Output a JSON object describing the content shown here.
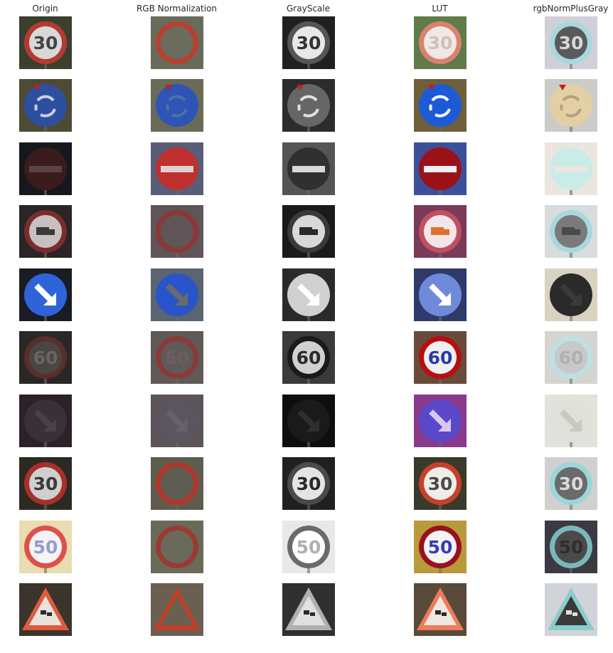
{
  "figure": {
    "columns": [
      {
        "key": "origin",
        "title": "Origin"
      },
      {
        "key": "rgbnorm",
        "title": "RGB Normalization"
      },
      {
        "key": "gray",
        "title": "GrayScale"
      },
      {
        "key": "lut",
        "title": "LUT"
      },
      {
        "key": "rgbgray",
        "title": "rgbNormPlusGray"
      }
    ],
    "rows": [
      {
        "sign": "speed",
        "text": "30",
        "kind": "regulatory",
        "shape": "circle-ring",
        "origin": {
          "bg": "#3a3f2e",
          "face": "#d8d8d8",
          "ring": "#b43a32",
          "glyph": "#444444"
        },
        "rgbnorm": {
          "bg": "#6a6a5a",
          "face": "#6b6b5e",
          "ring": "#b8402f",
          "glyph": "#6b6b5e"
        },
        "gray": {
          "bg": "#202020",
          "face": "#e8e8e8",
          "ring": "#555555",
          "glyph": "#333333"
        },
        "lut": {
          "bg": "#5f7b4a",
          "face": "#f0e8e4",
          "ring": "#d9826f",
          "glyph": "#d0c0bc"
        },
        "rgbgray": {
          "bg": "#cfd0d8",
          "face": "#5a5a5a",
          "ring": "#a8d8dc",
          "glyph": "#d8d8d8"
        }
      },
      {
        "sign": "roundabout",
        "text": "",
        "kind": "mandatory",
        "shape": "circle-fill",
        "origin": {
          "bg": "#4d4a36",
          "face": "#2e4fa0",
          "ring": "#2e4fa0",
          "glyph": "#c8d0e0"
        },
        "rgbnorm": {
          "bg": "#6a6a58",
          "face": "#2e55b5",
          "ring": "#2e55b5",
          "glyph": "#4f6fa8"
        },
        "gray": {
          "bg": "#2c2c2c",
          "face": "#202020",
          "ring": "#666666",
          "glyph": "#e0e0e0"
        },
        "lut": {
          "bg": "#6f5f3a",
          "face": "#1d5ad6",
          "ring": "#1d5ad6",
          "glyph": "#ffffff"
        },
        "rgbgray": {
          "bg": "#cbcbc8",
          "face": "#e2cfa5",
          "ring": "#e2cfa5",
          "glyph": "#b5a27c"
        }
      },
      {
        "sign": "no-entry",
        "text": "",
        "kind": "bar",
        "shape": "circle-bar",
        "origin": {
          "bg": "#16181e",
          "face": "#3a1c1c",
          "ring": "#3a1c1c",
          "glyph": "#5a4444"
        },
        "rgbnorm": {
          "bg": "#5a5d78",
          "face": "#c03030",
          "ring": "#c03030",
          "glyph": "#e0d0d0"
        },
        "gray": {
          "bg": "#555555",
          "face": "#202020",
          "ring": "#303030",
          "glyph": "#d8d8d8"
        },
        "lut": {
          "bg": "#3c4f9a",
          "face": "#9a1218",
          "ring": "#9a1218",
          "glyph": "#f0f0f0"
        },
        "rgbgray": {
          "bg": "#eae6df",
          "face": "#c9ece8",
          "ring": "#c9ece8",
          "glyph": "#eae6df"
        }
      },
      {
        "sign": "no-trucks",
        "text": "",
        "kind": "truck",
        "shape": "circle-ring",
        "origin": {
          "bg": "#2a2526",
          "face": "#c8c0c0",
          "ring": "#7a2d2d",
          "glyph": "#3a3a3a"
        },
        "rgbnorm": {
          "bg": "#5f5558",
          "face": "#605558",
          "ring": "#8a3838",
          "glyph": "#605558"
        },
        "gray": {
          "bg": "#1a1a1a",
          "face": "#d8d8d8",
          "ring": "#3a3a3a",
          "glyph": "#2a2a2a"
        },
        "lut": {
          "bg": "#7a3a5a",
          "face": "#f2e6ea",
          "ring": "#c05060",
          "glyph": "#e07030"
        },
        "rgbgray": {
          "bg": "#d8dcdc",
          "face": "#7a7a7a",
          "ring": "#a8d8dc",
          "glyph": "#4a4a4a"
        }
      },
      {
        "sign": "keep-right",
        "text": "",
        "kind": "arrow",
        "shape": "circle-fill",
        "origin": {
          "bg": "#1a1c24",
          "face": "#2f64d8",
          "ring": "#2f64d8",
          "glyph": "#ffffff"
        },
        "rgbnorm": {
          "bg": "#5a6472",
          "face": "#2a55c8",
          "ring": "#2a55c8",
          "glyph": "#6a6a6a"
        },
        "gray": {
          "bg": "#2a2a2a",
          "face": "#7a7a7a",
          "ring": "#d0d0d0",
          "glyph": "#ffffff"
        },
        "lut": {
          "bg": "#2f3a6a",
          "face": "#6f8ad8",
          "ring": "#6f8ad8",
          "glyph": "#ffffff"
        },
        "rgbgray": {
          "bg": "#d7d2c2",
          "face": "#b89c58",
          "ring": "#2a2a2a",
          "glyph": "#3a3a3a"
        }
      },
      {
        "sign": "speed",
        "text": "60",
        "kind": "regulatory",
        "shape": "circle-ring",
        "origin": {
          "bg": "#2a2826",
          "face": "#4a4644",
          "ring": "#5a2e2a",
          "glyph": "#6a6462"
        },
        "rgbnorm": {
          "bg": "#5f5a58",
          "face": "#5f5a58",
          "ring": "#8a3a38",
          "glyph": "#6a5e60"
        },
        "gray": {
          "bg": "#3a3a3a",
          "face": "#d0d0d0",
          "ring": "#1a1a1a",
          "glyph": "#2a2a2a"
        },
        "lut": {
          "bg": "#6a4a3a",
          "face": "#f0f0f0",
          "ring": "#b80e12",
          "glyph": "#2a3aa8"
        },
        "rgbgray": {
          "bg": "#d4d4d0",
          "face": "#c8c8c8",
          "ring": "#bfe0e2",
          "glyph": "#b0b0b0"
        }
      },
      {
        "sign": "keep-right-dark",
        "text": "",
        "kind": "arrow",
        "shape": "circle-fill",
        "origin": {
          "bg": "#2a2228",
          "face": "#3a3038",
          "ring": "#3a3038",
          "glyph": "#4a4046"
        },
        "rgbnorm": {
          "bg": "#5c5458",
          "face": "#5a5560",
          "ring": "#5a5560",
          "glyph": "#6a6068"
        },
        "gray": {
          "bg": "#0e0e0e",
          "face": "#202020",
          "ring": "#1a1a1a",
          "glyph": "#2e2e2e"
        },
        "lut": {
          "bg": "#8a3a8a",
          "face": "#5a48c8",
          "ring": "#5a48c8",
          "glyph": "#d8c8f0"
        },
        "rgbgray": {
          "bg": "#e2e2dc",
          "face": "#e0e0da",
          "ring": "#e0e0da",
          "glyph": "#c8c8c0"
        }
      },
      {
        "sign": "speed",
        "text": "30",
        "kind": "regulatory",
        "shape": "circle-ring",
        "origin": {
          "bg": "#2c2a22",
          "face": "#cfcfcf",
          "ring": "#a8302a",
          "glyph": "#3a3a3a"
        },
        "rgbnorm": {
          "bg": "#5f5c4e",
          "face": "#5f5c52",
          "ring": "#b0362c",
          "glyph": "#5f5c52"
        },
        "gray": {
          "bg": "#202020",
          "face": "#e4e4e4",
          "ring": "#4a4a4a",
          "glyph": "#2a2a2a"
        },
        "lut": {
          "bg": "#3a3a2a",
          "face": "#f0ece8",
          "ring": "#c8402c",
          "glyph": "#4a4a4a"
        },
        "rgbgray": {
          "bg": "#d0d0d0",
          "face": "#6a6a6a",
          "ring": "#9ad6da",
          "glyph": "#dadada"
        }
      },
      {
        "sign": "speed",
        "text": "50",
        "kind": "regulatory",
        "shape": "circle-ring",
        "origin": {
          "bg": "#e8dcb0",
          "face": "#f4f4f4",
          "ring": "#e0504a",
          "glyph": "#9a9ad0"
        },
        "rgbnorm": {
          "bg": "#6a6a58",
          "face": "#6a6a5a",
          "ring": "#9a3a32",
          "glyph": "#6a6a5a"
        },
        "gray": {
          "bg": "#e8e8e8",
          "face": "#ffffff",
          "ring": "#6a6a6a",
          "glyph": "#b0b0b0"
        },
        "lut": {
          "bg": "#b89a3a",
          "face": "#f4f4f4",
          "ring": "#9a1020",
          "glyph": "#3a3ab8"
        },
        "rgbgray": {
          "bg": "#3a3a40",
          "face": "#4a4a4a",
          "ring": "#7ab8bc",
          "glyph": "#2e2e2e"
        }
      },
      {
        "sign": "warning",
        "text": "",
        "kind": "warning",
        "shape": "triangle",
        "origin": {
          "bg": "#3a342a",
          "face": "#e8e4dc",
          "ring": "#e05a40",
          "glyph": "#2a2a2a"
        },
        "rgbnorm": {
          "bg": "#6a6052",
          "face": "#6a6052",
          "ring": "#c04028",
          "glyph": "#6a6052"
        },
        "gray": {
          "bg": "#303030",
          "face": "#e0e0e0",
          "ring": "#b0b0b0",
          "glyph": "#2a2a2a"
        },
        "lut": {
          "bg": "#5a4a3a",
          "face": "#f0e8e0",
          "ring": "#f07a5a",
          "glyph": "#2a2a2a"
        },
        "rgbgray": {
          "bg": "#d0d4d8",
          "face": "#3a3a3a",
          "ring": "#8acccc",
          "glyph": "#e0e0e0"
        }
      }
    ]
  }
}
